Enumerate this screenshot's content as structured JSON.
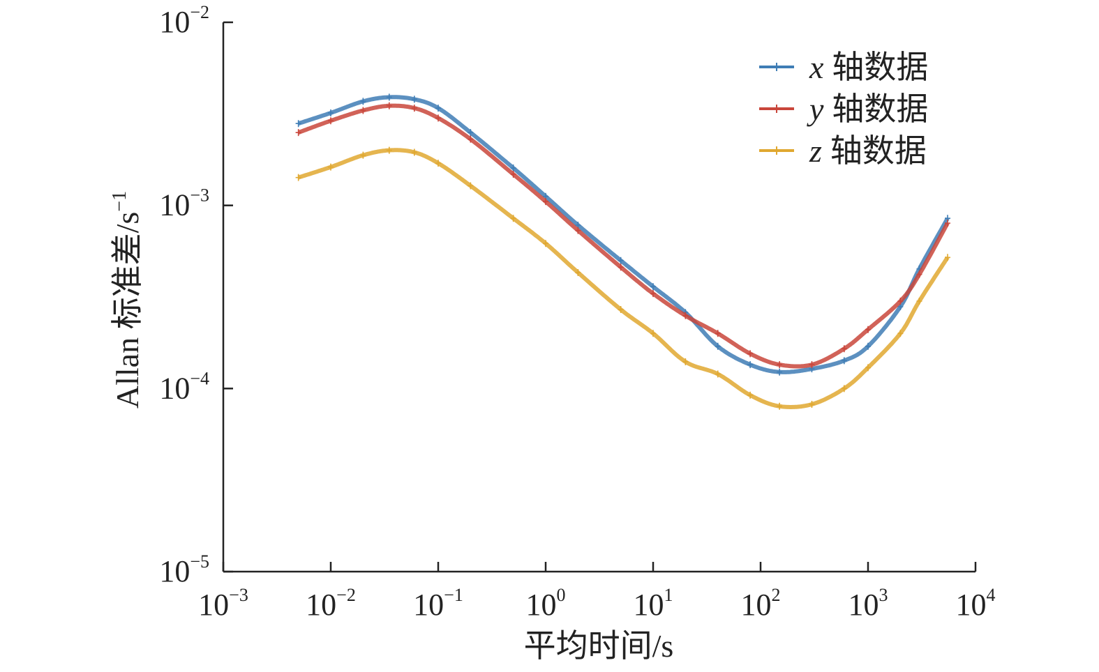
{
  "chart_data": {
    "type": "line",
    "title": "",
    "xlabel": "平均时间/s",
    "ylabel_base": "Allan 标准差/s",
    "ylabel_exp": "−1",
    "xscale": "log",
    "yscale": "log",
    "xlim": [
      0.001,
      10000
    ],
    "ylim": [
      1e-05,
      0.01
    ],
    "x_ticks": [
      {
        "value": 0.001,
        "base": "10",
        "exp": "−3"
      },
      {
        "value": 0.01,
        "base": "10",
        "exp": "−2"
      },
      {
        "value": 0.1,
        "base": "10",
        "exp": "−1"
      },
      {
        "value": 1,
        "base": "10",
        "exp": "0"
      },
      {
        "value": 10,
        "base": "10",
        "exp": "1"
      },
      {
        "value": 100,
        "base": "10",
        "exp": "2"
      },
      {
        "value": 1000,
        "base": "10",
        "exp": "3"
      },
      {
        "value": 10000,
        "base": "10",
        "exp": "4"
      }
    ],
    "y_ticks": [
      {
        "value": 1e-05,
        "base": "10",
        "exp": "−5"
      },
      {
        "value": 0.0001,
        "base": "10",
        "exp": "−4"
      },
      {
        "value": 0.001,
        "base": "10",
        "exp": "−3"
      },
      {
        "value": 0.01,
        "base": "10",
        "exp": "−2"
      }
    ],
    "legend_position": "top-right",
    "grid": false,
    "series": [
      {
        "name": "x 轴数据",
        "var": "x",
        "suffix": "轴数据",
        "color": "#3f7db5",
        "x": [
          0.005,
          0.01,
          0.02,
          0.035,
          0.06,
          0.1,
          0.2,
          0.5,
          1,
          2,
          5,
          10,
          20,
          40,
          80,
          150,
          300,
          600,
          1000,
          2000,
          3000,
          5500
        ],
        "y": [
          0.0028,
          0.0032,
          0.0037,
          0.0039,
          0.0038,
          0.0034,
          0.0025,
          0.0016,
          0.00112,
          0.00078,
          0.0005,
          0.00036,
          0.00026,
          0.00017,
          0.000135,
          0.000123,
          0.000128,
          0.000142,
          0.00017,
          0.00028,
          0.00045,
          0.00085
        ]
      },
      {
        "name": "y 轴数据",
        "var": "y",
        "suffix": "轴数据",
        "color": "#c9463b",
        "x": [
          0.005,
          0.01,
          0.02,
          0.035,
          0.06,
          0.1,
          0.2,
          0.5,
          1,
          2,
          5,
          10,
          20,
          40,
          80,
          150,
          300,
          600,
          1000,
          2000,
          3000,
          5500
        ],
        "y": [
          0.0025,
          0.0029,
          0.0033,
          0.0035,
          0.0034,
          0.003,
          0.0023,
          0.00148,
          0.00105,
          0.00073,
          0.00046,
          0.00033,
          0.00025,
          0.0002,
          0.000155,
          0.000135,
          0.000135,
          0.000165,
          0.00021,
          0.0003,
          0.00042,
          0.0008
        ]
      },
      {
        "name": "z 轴数据",
        "var": "z",
        "suffix": "轴数据",
        "color": "#e0a830",
        "x": [
          0.005,
          0.01,
          0.02,
          0.035,
          0.06,
          0.1,
          0.2,
          0.5,
          1,
          2,
          5,
          10,
          20,
          40,
          80,
          150,
          300,
          600,
          1000,
          2000,
          3000,
          5500
        ],
        "y": [
          0.00142,
          0.00162,
          0.00188,
          0.002,
          0.00195,
          0.0017,
          0.00128,
          0.00085,
          0.00062,
          0.00043,
          0.00027,
          0.0002,
          0.00014,
          0.00012,
          9.2e-05,
          8e-05,
          8.2e-05,
          0.0001,
          0.00013,
          0.0002,
          0.0003,
          0.00052
        ]
      }
    ]
  }
}
